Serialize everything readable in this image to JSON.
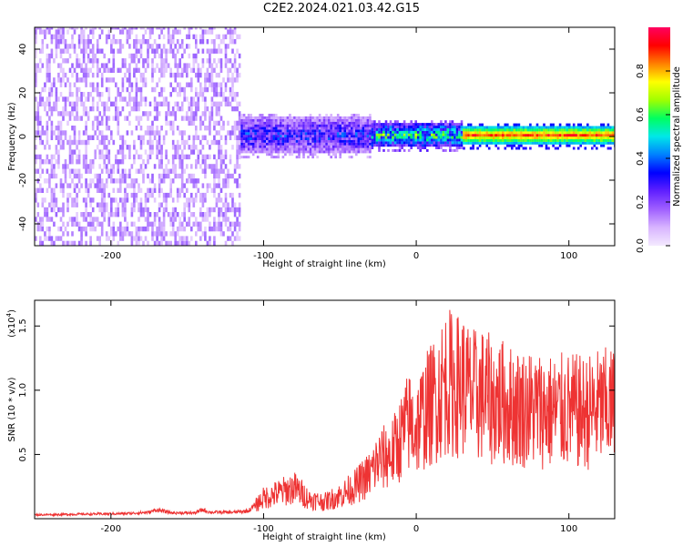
{
  "page_title": "C2E2.2024.021.03.42.G15",
  "colors": {
    "snr_line": "#ee3333",
    "colormap": [
      "#f4eaff",
      "#d8b4ff",
      "#a060ff",
      "#6020ff",
      "#0000ff",
      "#0080ff",
      "#00e8e8",
      "#00ff60",
      "#a0ff00",
      "#ffff00",
      "#ff8000",
      "#ff0000",
      "#ff0060"
    ]
  },
  "chart_data": [
    {
      "type": "heatmap",
      "title": "C2E2.2024.021.03.42.G15",
      "xlabel": "Height of straight line (km)",
      "ylabel": "Frequency (Hz)",
      "xlim": [
        -250,
        130
      ],
      "ylim": [
        -50,
        50
      ],
      "x_ticks": [
        -200,
        -100,
        0,
        100
      ],
      "y_ticks": [
        -40,
        -20,
        0,
        20,
        40
      ],
      "colorbar": {
        "label": "Normalized spectral amplitude",
        "range": [
          0,
          1
        ],
        "ticks": [
          "0.0",
          "0.2",
          "0.4",
          "0.6",
          "0.8"
        ],
        "tick_values": [
          0.0,
          0.2,
          0.4,
          0.6,
          0.8
        ]
      },
      "regions": [
        {
          "x": [
            -250,
            -115
          ],
          "freq_spread": 50,
          "amplitude": [
            0.05,
            0.2
          ],
          "description": "broadband noise"
        },
        {
          "x": [
            -115,
            -30
          ],
          "freq_center": 0,
          "freq_halfwidth": 7,
          "amplitude": [
            0.15,
            0.45
          ]
        },
        {
          "x": [
            -30,
            30
          ],
          "freq_center": 0,
          "freq_halfwidth": 4,
          "amplitude": [
            0.3,
            0.75
          ]
        },
        {
          "x": [
            30,
            130
          ],
          "freq_center": 0,
          "freq_halfwidth": 3,
          "amplitude": [
            0.8,
            0.95
          ]
        }
      ]
    },
    {
      "type": "line",
      "xlabel": "Height of straight line (km)",
      "ylabel": "SNR (10 * v/v)",
      "y_multiplier": "(x10",
      "y_multiplier_exp": "4",
      "y_multiplier_close": ")",
      "xlim": [
        -250,
        130
      ],
      "ylim": [
        0,
        17000
      ],
      "x_ticks": [
        -200,
        -100,
        0,
        100
      ],
      "y_ticks": [
        5000,
        10000,
        15000
      ],
      "y_tick_labels": [
        "0.5",
        "1.0",
        "1.5"
      ],
      "series": [
        {
          "x": [
            -250,
            -220,
            -190,
            -175,
            -170,
            -160,
            -145,
            -140,
            -135,
            -120,
            -110,
            -100,
            -90,
            -80,
            -75,
            -70,
            -60,
            -50,
            -40,
            -30,
            -25,
            -20,
            -15,
            -10,
            -5,
            0,
            5,
            10,
            15,
            20,
            25,
            30,
            35,
            40,
            45,
            50,
            55,
            60,
            70,
            80,
            90,
            100,
            110,
            120,
            130
          ],
          "y": [
            300,
            350,
            400,
            500,
            700,
            450,
            450,
            700,
            500,
            500,
            600,
            1600,
            2000,
            2400,
            2000,
            1500,
            1300,
            1800,
            2500,
            3500,
            4500,
            4800,
            5200,
            6300,
            7500,
            7000,
            8200,
            8900,
            9800,
            10800,
            10300,
            10500,
            9800,
            9500,
            9700,
            9000,
            9200,
            8800,
            8600,
            8500,
            8300,
            8400,
            8200,
            8600,
            8700
          ]
        }
      ]
    }
  ]
}
